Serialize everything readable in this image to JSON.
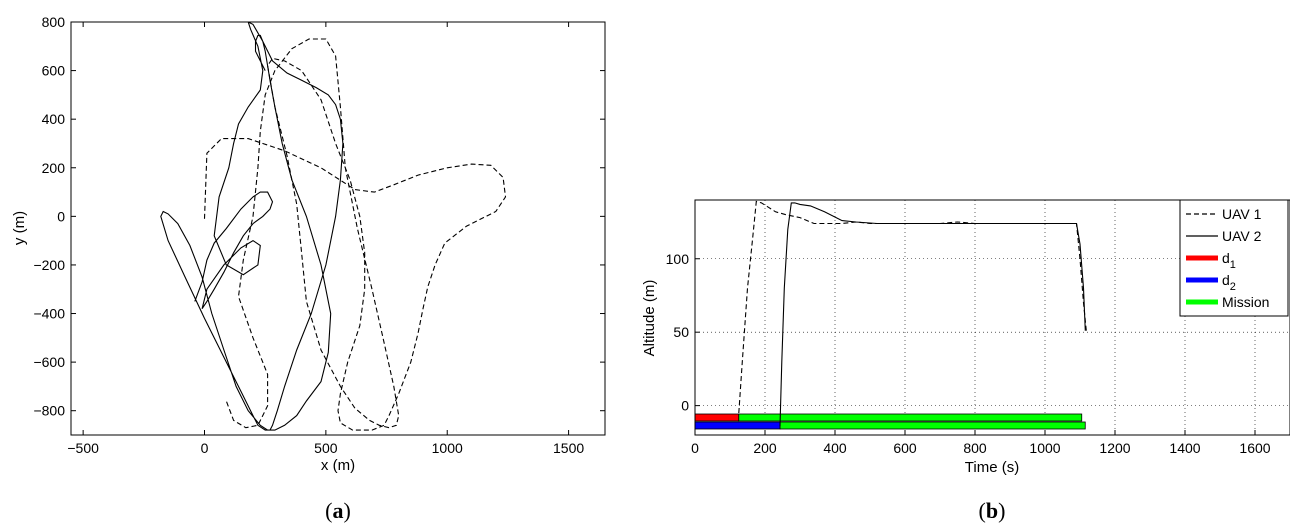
{
  "chart_data": [
    {
      "type": "line",
      "panel_label_open": "(",
      "panel_label_letter": "a",
      "panel_label_close": ")",
      "xlabel": "x (m)",
      "ylabel": "y (m)",
      "xlim": [
        -550,
        1650
      ],
      "ylim": [
        -900,
        800
      ],
      "xticks": [
        -500,
        0,
        500,
        1000,
        1500
      ],
      "yticks": [
        -800,
        -600,
        -400,
        -200,
        0,
        200,
        400,
        600,
        800
      ],
      "grid": false,
      "series": [
        {
          "style": "dashed",
          "x": [
            0,
            10,
            70,
            180,
            330,
            480,
            620,
            700,
            780,
            880,
            1000,
            1100,
            1180,
            1230,
            1240,
            1200,
            1080,
            990,
            950,
            920,
            900,
            880,
            850,
            800,
            760,
            740,
            690,
            610,
            560,
            550,
            560,
            590,
            640,
            660,
            660,
            640,
            600,
            540,
            480,
            400,
            330,
            280,
            260,
            290,
            340,
            380,
            400,
            420,
            480,
            560,
            620,
            680,
            720,
            760,
            790,
            800,
            780,
            740,
            690,
            630,
            580,
            560,
            540,
            500,
            430,
            360,
            290,
            250,
            230,
            220,
            200,
            160,
            140,
            200,
            260,
            260,
            220,
            170,
            120,
            90
          ],
          "y": [
            -10,
            260,
            320,
            320,
            270,
            200,
            110,
            100,
            130,
            170,
            200,
            215,
            210,
            160,
            80,
            20,
            -40,
            -110,
            -200,
            -290,
            -380,
            -480,
            -600,
            -730,
            -820,
            -860,
            -880,
            -880,
            -850,
            -800,
            -730,
            -600,
            -450,
            -300,
            -150,
            0,
            150,
            300,
            480,
            600,
            640,
            650,
            620,
            450,
            250,
            50,
            -150,
            -350,
            -550,
            -700,
            -790,
            -840,
            -860,
            -870,
            -860,
            -820,
            -700,
            -520,
            -300,
            -50,
            200,
            450,
            660,
            730,
            730,
            690,
            600,
            500,
            350,
            200,
            0,
            -180,
            -330,
            -500,
            -650,
            -780,
            -860,
            -870,
            -840,
            -760
          ]
        },
        {
          "style": "solid",
          "x": [
            -40,
            -10,
            10,
            40,
            90,
            150,
            200,
            230,
            260,
            280,
            270,
            240,
            200,
            160,
            120,
            80,
            40,
            10,
            -10,
            10,
            80,
            150,
            200,
            230,
            220,
            160,
            90,
            40,
            60,
            100,
            120,
            140,
            180,
            230,
            240,
            220,
            190,
            180,
            200,
            240,
            280,
            340,
            400,
            460,
            510,
            540,
            560,
            570,
            560,
            540,
            500,
            440,
            380,
            330,
            300,
            280,
            270,
            250,
            220,
            200,
            150,
            80,
            0,
            -80,
            -150,
            -180,
            -170,
            -150,
            -110,
            -60,
            -10,
            30,
            80,
            130,
            180,
            230,
            260,
            290,
            330,
            380,
            420,
            480,
            510,
            520,
            480,
            420,
            360,
            320,
            290,
            270,
            260,
            250,
            240,
            230,
            220,
            210,
            210,
            250
          ],
          "y": [
            -350,
            -270,
            -180,
            -110,
            -50,
            30,
            80,
            100,
            100,
            60,
            30,
            0,
            -30,
            -80,
            -150,
            -230,
            -300,
            -350,
            -380,
            -300,
            -200,
            -130,
            -100,
            -120,
            -200,
            -240,
            -200,
            -80,
            80,
            200,
            300,
            380,
            450,
            520,
            600,
            700,
            770,
            800,
            790,
            720,
            640,
            590,
            560,
            530,
            500,
            460,
            400,
            300,
            150,
            0,
            -200,
            -400,
            -550,
            -700,
            -800,
            -860,
            -880,
            -880,
            -860,
            -820,
            -720,
            -580,
            -420,
            -250,
            -100,
            0,
            20,
            10,
            -30,
            -120,
            -250,
            -400,
            -550,
            -700,
            -800,
            -860,
            -880,
            -880,
            -860,
            -820,
            -760,
            -680,
            -560,
            -400,
            -200,
            0,
            150,
            300,
            450,
            560,
            620,
            680,
            720,
            745,
            745,
            720,
            680,
            600
          ]
        }
      ]
    },
    {
      "type": "line",
      "panel_label_open": "(",
      "panel_label_letter": "b",
      "panel_label_close": ")",
      "xlabel": "Time (s)",
      "ylabel": "Altitude (m)",
      "xlim": [
        0,
        1700
      ],
      "ylim": [
        -20,
        140
      ],
      "xticks": [
        0,
        200,
        400,
        600,
        800,
        1000,
        1200,
        1400,
        1600
      ],
      "yticks": [
        0,
        50,
        100
      ],
      "grid": true,
      "legend_placement": "top-right",
      "legend": [
        {
          "label": "UAV 1",
          "sub": "",
          "kind": "line",
          "dash": "dashed",
          "color": "#000000"
        },
        {
          "label": "UAV 2",
          "sub": "",
          "kind": "line",
          "dash": "solid",
          "color": "#000000"
        },
        {
          "label": "d",
          "sub": "1",
          "kind": "bar",
          "color": "#ff0000"
        },
        {
          "label": "d",
          "sub": "2",
          "kind": "bar",
          "color": "#0000ff"
        },
        {
          "label": "Mission",
          "sub": "",
          "kind": "bar",
          "color": "#00ff00"
        }
      ],
      "series": [
        {
          "name": "UAV 1",
          "style": "dashed",
          "x": [
            125,
            135,
            150,
            165,
            175,
            190,
            210,
            230,
            260,
            300,
            340,
            380,
            420,
            460,
            500,
            550,
            600,
            650,
            700,
            750,
            800,
            850,
            900,
            950,
            1000,
            1050,
            1080,
            1090,
            1100,
            1110,
            1118
          ],
          "y": [
            -5,
            30,
            80,
            115,
            139,
            138,
            135,
            132,
            130,
            128,
            124,
            124,
            124,
            125,
            124,
            124,
            124,
            124,
            124,
            125,
            124,
            124,
            124,
            124,
            124,
            124,
            124,
            124,
            100,
            70,
            51
          ]
        },
        {
          "name": "UAV 2",
          "style": "solid",
          "x": [
            243,
            248,
            255,
            265,
            275,
            285,
            300,
            330,
            370,
            420,
            460,
            520,
            600,
            700,
            800,
            900,
            1000,
            1050,
            1080,
            1090,
            1100,
            1110,
            1115
          ],
          "y": [
            -14,
            30,
            80,
            120,
            138,
            138,
            137,
            136,
            132,
            126,
            125,
            124,
            124,
            124,
            124,
            124,
            124,
            124,
            124,
            124,
            110,
            80,
            51
          ]
        }
      ],
      "bars": [
        {
          "row": 1,
          "color": "#ff0000",
          "start": 0,
          "end": 125
        },
        {
          "row": 1,
          "color": "#00ff00",
          "start": 125,
          "end": 1105
        },
        {
          "row": 2,
          "color": "#0000ff",
          "start": 0,
          "end": 243
        },
        {
          "row": 2,
          "color": "#00ff00",
          "start": 243,
          "end": 1115
        }
      ]
    }
  ]
}
